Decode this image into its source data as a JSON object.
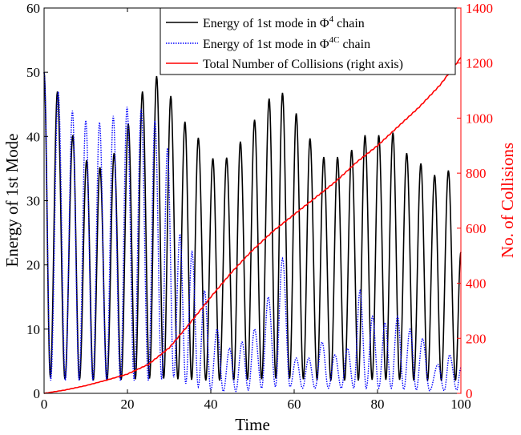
{
  "chart_data": {
    "type": "line",
    "xlabel": "Time",
    "ylabel_left": "Energy of 1st Mode",
    "ylabel_right": "No. of Collisions",
    "xlim": [
      0,
      100
    ],
    "ylim_left": [
      0,
      60
    ],
    "ylim_right": [
      0,
      1400
    ],
    "xticks": [
      0,
      20,
      40,
      60,
      80,
      100
    ],
    "yticks_left": [
      0,
      10,
      20,
      30,
      40,
      50,
      60
    ],
    "yticks_right": [
      0,
      200,
      400,
      600,
      800,
      1000,
      1200,
      1400
    ],
    "xtick_labels": [
      "0",
      "20",
      "40",
      "60",
      "80",
      "100"
    ],
    "ytick_labels_left": [
      "0",
      "10",
      "20",
      "30",
      "40",
      "50",
      "60"
    ],
    "ytick_labels_right": [
      "0",
      "200",
      "400",
      "600",
      "800",
      "1000",
      "1200",
      "1400"
    ],
    "legend_position": "top-center",
    "legend": {
      "phi4_prefix": "Energy of 1st mode in Φ",
      "phi4_sup": "4",
      "phi4_suffix": " chain",
      "phi4c_prefix": "Energy of 1st mode in Φ",
      "phi4c_sup": "4C",
      "phi4c_suffix": " chain",
      "collisions": "Total Number of Collisions (right axis)"
    },
    "colors": {
      "phi4": "#000000",
      "phi4c": "#0000ff",
      "collisions": "#ff0000",
      "right_axis": "#ff0000"
    },
    "series": [
      {
        "name": "Energy of 1st mode in Φ4 chain",
        "axis": "left",
        "style": "solid",
        "peaks": [
          {
            "t": 3.2,
            "v": 47.0
          },
          {
            "t": 6.9,
            "v": 40.2
          },
          {
            "t": 10.2,
            "v": 36.3
          },
          {
            "t": 13.4,
            "v": 35.2
          },
          {
            "t": 16.8,
            "v": 37.4
          },
          {
            "t": 20.2,
            "v": 42.0
          },
          {
            "t": 23.6,
            "v": 47.0
          },
          {
            "t": 27.0,
            "v": 49.4
          },
          {
            "t": 30.4,
            "v": 46.3
          },
          {
            "t": 33.8,
            "v": 42.3
          },
          {
            "t": 37.0,
            "v": 39.8
          },
          {
            "t": 40.5,
            "v": 36.6
          },
          {
            "t": 43.8,
            "v": 36.7
          },
          {
            "t": 47.1,
            "v": 39.2
          },
          {
            "t": 50.5,
            "v": 42.6
          },
          {
            "t": 54.0,
            "v": 45.9
          },
          {
            "t": 57.2,
            "v": 46.8
          },
          {
            "t": 60.5,
            "v": 43.6
          },
          {
            "t": 63.8,
            "v": 39.7
          },
          {
            "t": 67.1,
            "v": 36.8
          },
          {
            "t": 70.4,
            "v": 36.8
          },
          {
            "t": 73.8,
            "v": 37.9
          },
          {
            "t": 77.0,
            "v": 40.2
          },
          {
            "t": 80.3,
            "v": 40.2
          },
          {
            "t": 83.7,
            "v": 40.6
          },
          {
            "t": 87.0,
            "v": 37.4
          },
          {
            "t": 90.4,
            "v": 35.8
          },
          {
            "t": 93.7,
            "v": 34.0
          },
          {
            "t": 97.0,
            "v": 34.7
          }
        ],
        "troughs": [
          {
            "t": 1.5,
            "v": 2.5
          },
          {
            "t": 5.0,
            "v": 2.2
          },
          {
            "t": 8.5,
            "v": 2.1
          },
          {
            "t": 11.8,
            "v": 2.0
          },
          {
            "t": 15.1,
            "v": 2.0
          },
          {
            "t": 18.5,
            "v": 2.1
          },
          {
            "t": 21.9,
            "v": 2.2
          },
          {
            "t": 25.3,
            "v": 2.3
          },
          {
            "t": 28.7,
            "v": 2.3
          },
          {
            "t": 32.1,
            "v": 2.2
          },
          {
            "t": 35.4,
            "v": 2.1
          },
          {
            "t": 38.8,
            "v": 2.0
          },
          {
            "t": 42.1,
            "v": 2.0
          },
          {
            "t": 45.5,
            "v": 2.0
          },
          {
            "t": 48.8,
            "v": 2.1
          },
          {
            "t": 52.2,
            "v": 2.2
          },
          {
            "t": 55.6,
            "v": 2.3
          },
          {
            "t": 58.9,
            "v": 2.3
          },
          {
            "t": 62.2,
            "v": 2.2
          },
          {
            "t": 65.5,
            "v": 2.1
          },
          {
            "t": 68.8,
            "v": 2.0
          },
          {
            "t": 72.1,
            "v": 2.0
          },
          {
            "t": 75.4,
            "v": 2.0
          },
          {
            "t": 78.7,
            "v": 2.1
          },
          {
            "t": 82.0,
            "v": 2.1
          },
          {
            "t": 85.3,
            "v": 2.1
          },
          {
            "t": 88.7,
            "v": 2.0
          },
          {
            "t": 92.0,
            "v": 2.0
          },
          {
            "t": 95.3,
            "v": 2.0
          },
          {
            "t": 98.7,
            "v": 2.0
          }
        ],
        "start": {
          "t": 0,
          "v": 50.0
        },
        "end": {
          "t": 100,
          "v": 22.0
        }
      },
      {
        "name": "Energy of 1st mode in Φ4C chain",
        "axis": "left",
        "style": "dotted",
        "peaks": [
          {
            "t": 3.4,
            "v": 47.0
          },
          {
            "t": 6.8,
            "v": 44.0
          },
          {
            "t": 10.0,
            "v": 42.5
          },
          {
            "t": 13.3,
            "v": 42.2
          },
          {
            "t": 16.6,
            "v": 43.2
          },
          {
            "t": 19.9,
            "v": 44.6
          },
          {
            "t": 23.3,
            "v": 44.3
          },
          {
            "t": 26.6,
            "v": 42.5
          },
          {
            "t": 29.6,
            "v": 38.2
          },
          {
            "t": 32.6,
            "v": 24.8
          },
          {
            "t": 35.5,
            "v": 22.0
          },
          {
            "t": 38.5,
            "v": 16.0
          },
          {
            "t": 41.5,
            "v": 10.0
          },
          {
            "t": 44.5,
            "v": 7.0
          },
          {
            "t": 47.5,
            "v": 8.0
          },
          {
            "t": 50.5,
            "v": 10.0
          },
          {
            "t": 53.8,
            "v": 15.0
          },
          {
            "t": 57.2,
            "v": 21.0
          },
          {
            "t": 60.5,
            "v": 5.5
          },
          {
            "t": 63.5,
            "v": 5.5
          },
          {
            "t": 66.7,
            "v": 8.0
          },
          {
            "t": 69.8,
            "v": 6.0
          },
          {
            "t": 72.8,
            "v": 7.0
          },
          {
            "t": 75.8,
            "v": 16.0
          },
          {
            "t": 78.8,
            "v": 12.0
          },
          {
            "t": 81.8,
            "v": 11.0
          },
          {
            "t": 84.8,
            "v": 12.0
          },
          {
            "t": 87.8,
            "v": 10.0
          },
          {
            "t": 90.8,
            "v": 8.5
          },
          {
            "t": 94.5,
            "v": 4.5
          },
          {
            "t": 97.3,
            "v": 6.0
          }
        ],
        "troughs": [
          {
            "t": 1.6,
            "v": 2.0
          },
          {
            "t": 5.1,
            "v": 2.0
          },
          {
            "t": 8.4,
            "v": 2.0
          },
          {
            "t": 11.7,
            "v": 2.0
          },
          {
            "t": 15.0,
            "v": 2.0
          },
          {
            "t": 18.3,
            "v": 2.0
          },
          {
            "t": 21.6,
            "v": 2.0
          },
          {
            "t": 25.0,
            "v": 2.0
          },
          {
            "t": 28.2,
            "v": 2.2
          },
          {
            "t": 31.1,
            "v": 2.5
          },
          {
            "t": 34.0,
            "v": 1.5
          },
          {
            "t": 37.0,
            "v": 1.0
          },
          {
            "t": 40.0,
            "v": 0.5
          },
          {
            "t": 43.0,
            "v": 0.3
          },
          {
            "t": 46.0,
            "v": 0.3
          },
          {
            "t": 49.0,
            "v": 0.5
          },
          {
            "t": 52.2,
            "v": 0.8
          },
          {
            "t": 55.5,
            "v": 1.0
          },
          {
            "t": 59.0,
            "v": 1.0
          },
          {
            "t": 62.0,
            "v": 0.8
          },
          {
            "t": 65.0,
            "v": 0.8
          },
          {
            "t": 68.2,
            "v": 0.8
          },
          {
            "t": 71.3,
            "v": 0.8
          },
          {
            "t": 74.3,
            "v": 0.8
          },
          {
            "t": 77.3,
            "v": 0.8
          },
          {
            "t": 80.3,
            "v": 0.8
          },
          {
            "t": 83.3,
            "v": 0.8
          },
          {
            "t": 86.3,
            "v": 0.6
          },
          {
            "t": 89.3,
            "v": 0.5
          },
          {
            "t": 92.5,
            "v": 0.4
          },
          {
            "t": 96.0,
            "v": 0.4
          },
          {
            "t": 99.0,
            "v": 0.5
          }
        ],
        "start": {
          "t": 0,
          "v": 50.0
        },
        "end": {
          "t": 100,
          "v": 4.0
        }
      },
      {
        "name": "Total Number of Collisions (right axis)",
        "axis": "right",
        "style": "solid",
        "x": [
          0,
          5,
          10,
          15,
          20,
          25,
          30,
          35,
          40,
          45,
          50,
          55,
          60,
          65,
          70,
          75,
          80,
          85,
          90,
          95,
          100
        ],
        "values": [
          0,
          12,
          28,
          48,
          70,
          105,
          165,
          255,
          350,
          440,
          520,
          590,
          650,
          710,
          770,
          840,
          900,
          970,
          1040,
          1120,
          1220
        ]
      }
    ]
  }
}
